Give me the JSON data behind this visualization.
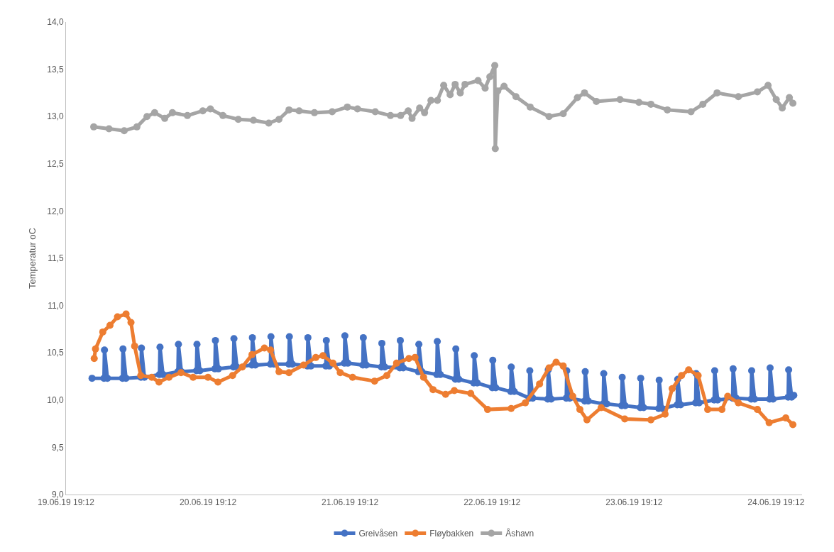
{
  "chart_data": {
    "type": "line",
    "ylabel": "Temperatur oC",
    "marker": "circle",
    "line_style": "solid",
    "legend": "bottom",
    "xlim": [
      "--06-19T19:12",
      "--06-24T23:36"
    ],
    "xticks": [
      {
        "value": "--06-19T19:12",
        "label": "19.06.19 19:12"
      },
      {
        "value": "--06-20T19:12",
        "label": "20.06.19 19:12"
      },
      {
        "value": "--06-21T19:12",
        "label": "21.06.19 19:12"
      },
      {
        "value": "--06-22T19:12",
        "label": "22.06.19 19:12"
      },
      {
        "value": "--06-23T19:12",
        "label": "23.06.19 19:12"
      },
      {
        "value": "--06-24T19:12",
        "label": "24.06.19 19:12"
      }
    ],
    "ylim": [
      9,
      14
    ],
    "yticks": [
      {
        "value": 9,
        "label": "9,0"
      },
      {
        "value": 9.5,
        "label": "9,5"
      },
      {
        "value": 10,
        "label": "10,0"
      },
      {
        "value": 10.5,
        "label": "10,5"
      },
      {
        "value": 11,
        "label": "11,0"
      },
      {
        "value": 11.5,
        "label": "11,5"
      },
      {
        "value": 12,
        "label": "12,0"
      },
      {
        "value": 12.5,
        "label": "12,5"
      },
      {
        "value": 13,
        "label": "13,0"
      },
      {
        "value": 13.5,
        "label": "13,5"
      },
      {
        "value": 14,
        "label": "14,0"
      }
    ],
    "series": [
      {
        "name": "Greivåsen",
        "color": "#4472c4",
        "x": [
          "--06-19T23:36",
          "--06-20T01:37",
          "--06-20T01:42",
          "--06-20T02:12",
          "--06-20T04:45",
          "--06-20T04:50",
          "--06-20T05:20",
          "--06-20T07:52",
          "--06-20T07:57",
          "--06-20T08:27",
          "--06-20T11:00",
          "--06-20T11:05",
          "--06-20T11:35",
          "--06-20T14:07",
          "--06-20T14:12",
          "--06-20T14:42",
          "--06-20T17:15",
          "--06-20T17:20",
          "--06-20T17:50",
          "--06-20T20:22",
          "--06-20T20:27",
          "--06-20T20:57",
          "--06-20T23:30",
          "--06-20T23:35",
          "--06-21T00:05",
          "--06-21T02:37",
          "--06-21T02:42",
          "--06-21T03:12",
          "--06-21T05:45",
          "--06-21T05:50",
          "--06-21T06:20",
          "--06-21T08:52",
          "--06-21T08:57",
          "--06-21T09:27",
          "--06-21T12:00",
          "--06-21T12:05",
          "--06-21T12:35",
          "--06-21T15:07",
          "--06-21T15:12",
          "--06-21T15:42",
          "--06-21T18:15",
          "--06-21T18:20",
          "--06-21T18:50",
          "--06-21T21:22",
          "--06-21T21:27",
          "--06-21T21:57",
          "--06-22T00:30",
          "--06-22T00:35",
          "--06-22T01:05",
          "--06-22T03:37",
          "--06-22T03:42",
          "--06-22T04:12",
          "--06-22T06:45",
          "--06-22T06:50",
          "--06-22T07:20",
          "--06-22T09:52",
          "--06-22T09:57",
          "--06-22T10:27",
          "--06-22T13:00",
          "--06-22T13:05",
          "--06-22T13:35",
          "--06-22T16:07",
          "--06-22T16:12",
          "--06-22T16:42",
          "--06-22T19:15",
          "--06-22T19:20",
          "--06-22T19:50",
          "--06-22T22:22",
          "--06-22T22:27",
          "--06-22T22:57",
          "--06-23T01:30",
          "--06-23T01:35",
          "--06-23T02:05",
          "--06-23T04:37",
          "--06-23T04:42",
          "--06-23T05:12",
          "--06-23T07:45",
          "--06-23T07:50",
          "--06-23T08:20",
          "--06-23T10:52",
          "--06-23T10:57",
          "--06-23T11:27",
          "--06-23T14:00",
          "--06-23T14:05",
          "--06-23T14:35",
          "--06-23T17:07",
          "--06-23T17:12",
          "--06-23T17:42",
          "--06-23T20:15",
          "--06-23T20:20",
          "--06-23T20:50",
          "--06-23T23:22",
          "--06-23T23:27",
          "--06-23T23:57",
          "--06-24T02:30",
          "--06-24T02:35",
          "--06-24T03:05",
          "--06-24T05:37",
          "--06-24T05:42",
          "--06-24T06:12",
          "--06-24T08:45",
          "--06-24T08:50",
          "--06-24T09:20",
          "--06-24T11:52",
          "--06-24T11:57",
          "--06-24T12:27",
          "--06-24T15:00",
          "--06-24T15:05",
          "--06-24T15:35",
          "--06-24T18:07",
          "--06-24T18:12",
          "--06-24T18:42",
          "--06-24T21:15",
          "--06-24T21:20",
          "--06-24T21:50",
          "--06-24T22:12"
        ],
        "values": [
          10.23,
          10.23,
          10.53,
          10.23,
          10.23,
          10.54,
          10.23,
          10.24,
          10.55,
          10.24,
          10.27,
          10.56,
          10.27,
          10.3,
          10.59,
          10.3,
          10.31,
          10.59,
          10.31,
          10.33,
          10.63,
          10.33,
          10.35,
          10.65,
          10.35,
          10.37,
          10.66,
          10.37,
          10.38,
          10.67,
          10.38,
          10.38,
          10.67,
          10.38,
          10.36,
          10.66,
          10.36,
          10.36,
          10.63,
          10.36,
          10.39,
          10.68,
          10.39,
          10.37,
          10.66,
          10.37,
          10.35,
          10.6,
          10.35,
          10.34,
          10.63,
          10.34,
          10.3,
          10.59,
          10.3,
          10.27,
          10.62,
          10.27,
          10.22,
          10.54,
          10.22,
          10.18,
          10.47,
          10.18,
          10.13,
          10.42,
          10.13,
          10.09,
          10.35,
          10.09,
          10.02,
          10.31,
          10.02,
          10.01,
          10.32,
          10.01,
          10.02,
          10.31,
          10.02,
          9.99,
          10.3,
          9.99,
          9.96,
          10.28,
          9.96,
          9.94,
          10.24,
          9.94,
          9.92,
          10.23,
          9.92,
          9.91,
          10.21,
          9.91,
          9.95,
          10.22,
          9.95,
          9.97,
          10.28,
          9.97,
          10.0,
          10.31,
          10.0,
          10.02,
          10.33,
          10.02,
          10.01,
          10.31,
          10.01,
          10.01,
          10.34,
          10.01,
          10.03,
          10.32,
          10.03,
          10.05
        ]
      },
      {
        "name": "Fløybakken",
        "color": "#ed7d31",
        "x": [
          "--06-19T23:58",
          "--06-20T00:11",
          "--06-20T01:25",
          "--06-20T02:38",
          "--06-20T03:54",
          "--06-20T05:21",
          "--06-20T06:11",
          "--06-20T06:48",
          "--06-20T07:50",
          "--06-20T09:42",
          "--06-20T10:55",
          "--06-20T12:36",
          "--06-20T14:38",
          "--06-20T16:41",
          "--06-20T19:12",
          "--06-20T20:53",
          "--06-20T23:21",
          "--06-21T01:00",
          "--06-21T02:38",
          "--06-21T04:44",
          "--06-21T05:46",
          "--06-21T07:12",
          "--06-21T08:53",
          "--06-21T11:21",
          "--06-21T13:25",
          "--06-21T14:38",
          "--06-21T16:19",
          "--06-21T17:33",
          "--06-21T19:38",
          "--06-21T23:21",
          "--06-22T01:25",
          "--06-22T03:04",
          "--06-22T05:09",
          "--06-22T06:11",
          "--06-22T07:38",
          "--06-22T09:14",
          "--06-22T11:21",
          "--06-22T12:50",
          "--06-22T15:36",
          "--06-22T18:27",
          "--06-22T22:26",
          "--06-23T00:50",
          "--06-23T03:14",
          "--06-23T04:50",
          "--06-23T06:02",
          "--06-23T07:14",
          "--06-23T08:51",
          "--06-23T10:03",
          "--06-23T11:15",
          "--06-23T13:39",
          "--06-23T17:38",
          "--06-23T22:03",
          "--06-24T00:27",
          "--06-24T01:39",
          "--06-24T03:14",
          "--06-24T04:26",
          "--06-24T06:02",
          "--06-24T07:39",
          "--06-24T10:03",
          "--06-24T11:02",
          "--06-24T12:50",
          "--06-24T16:03",
          "--06-24T18:02",
          "--06-24T20:51",
          "--06-24T22:03"
        ],
        "values": [
          10.44,
          10.54,
          10.72,
          10.79,
          10.88,
          10.91,
          10.82,
          10.57,
          10.26,
          10.24,
          10.19,
          10.24,
          10.29,
          10.24,
          10.24,
          10.19,
          10.26,
          10.35,
          10.48,
          10.55,
          10.53,
          10.3,
          10.29,
          10.37,
          10.45,
          10.47,
          10.39,
          10.29,
          10.24,
          10.2,
          10.26,
          10.39,
          10.44,
          10.45,
          10.24,
          10.11,
          10.06,
          10.1,
          10.07,
          9.9,
          9.91,
          9.97,
          10.17,
          10.34,
          10.4,
          10.36,
          10.04,
          9.9,
          9.79,
          9.92,
          9.8,
          9.79,
          9.85,
          10.12,
          10.26,
          10.32,
          10.26,
          9.9,
          9.9,
          10.04,
          9.97,
          9.9,
          9.76,
          9.81,
          9.74
        ]
      },
      {
        "name": "Åshavn",
        "color": "#a5a5a5",
        "x": [
          "--06-19T23:53",
          "--06-20T02:28",
          "--06-20T05:02",
          "--06-20T07:11",
          "--06-20T08:53",
          "--06-20T10:11",
          "--06-20T11:53",
          "--06-20T13:11",
          "--06-20T15:43",
          "--06-20T18:19",
          "--06-20T19:36",
          "--06-20T21:43",
          "--06-21T00:19",
          "--06-21T02:53",
          "--06-21T05:28",
          "--06-21T07:11",
          "--06-21T08:53",
          "--06-21T10:36",
          "--06-21T13:11",
          "--06-21T16:11",
          "--06-21T18:45",
          "--06-21T20:28",
          "--06-21T23:28",
          "--06-22T02:02",
          "--06-22T03:45",
          "--06-22T05:02",
          "--06-22T05:41",
          "--06-22T06:58",
          "--06-22T07:48",
          "--06-22T08:53",
          "--06-22T09:58",
          "--06-22T11:02",
          "--06-22T12:07",
          "--06-22T12:58",
          "--06-22T13:50",
          "--06-22T14:38",
          "--06-22T16:50",
          "--06-22T18:02",
          "--06-22T18:50",
          "--06-22T19:40",
          "--06-22T19:45",
          "--06-22T20:10",
          "--06-22T21:14",
          "--06-22T23:15",
          "--06-23T01:39",
          "--06-23T04:50",
          "--06-23T07:14",
          "--06-23T09:38",
          "--06-23T10:50",
          "--06-23T12:50",
          "--06-23T16:50",
          "--06-23T20:02",
          "--06-23T22:03",
          "--06-24T00:50",
          "--06-24T04:50",
          "--06-24T06:50",
          "--06-24T09:14",
          "--06-24T12:50",
          "--06-24T16:03",
          "--06-24T17:51",
          "--06-24T19:14",
          "--06-24T20:15",
          "--06-24T21:27",
          "--06-24T22:03"
        ],
        "values": [
          12.89,
          12.87,
          12.85,
          12.89,
          13.0,
          13.04,
          12.98,
          13.04,
          13.01,
          13.06,
          13.08,
          13.01,
          12.97,
          12.96,
          12.93,
          12.97,
          13.07,
          13.06,
          13.04,
          13.05,
          13.1,
          13.08,
          13.05,
          13.01,
          13.01,
          13.06,
          12.98,
          13.09,
          13.04,
          13.17,
          13.17,
          13.33,
          13.23,
          13.34,
          13.25,
          13.34,
          13.38,
          13.3,
          13.42,
          13.54,
          12.66,
          13.27,
          13.32,
          13.21,
          13.1,
          13.0,
          13.03,
          13.2,
          13.25,
          13.16,
          13.18,
          13.15,
          13.13,
          13.07,
          13.05,
          13.13,
          13.25,
          13.21,
          13.26,
          13.33,
          13.18,
          13.09,
          13.2,
          13.14
        ]
      }
    ]
  }
}
